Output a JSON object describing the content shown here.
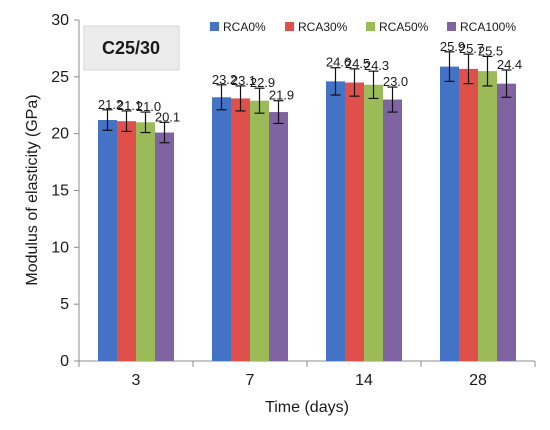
{
  "chart_data": {
    "type": "bar",
    "annotation": "C25/30",
    "xlabel": "Time (days)",
    "ylabel": "Modulus of elasticity (GPa)",
    "categories": [
      "3",
      "7",
      "14",
      "28"
    ],
    "ylim": [
      0,
      30
    ],
    "yticks": [
      0,
      5,
      10,
      15,
      20,
      25,
      30
    ],
    "legend_position": "top-right",
    "grid": false,
    "series": [
      {
        "name": "RCA0%",
        "color": "#4472C4",
        "values": [
          21.2,
          23.2,
          24.6,
          25.9
        ],
        "labels": [
          "21.2",
          "23.2",
          "24.6",
          "25.9"
        ],
        "errors": [
          0.9,
          1.1,
          1.2,
          1.3
        ]
      },
      {
        "name": "RCA30%",
        "color": "#E0504A",
        "values": [
          21.1,
          23.1,
          24.5,
          25.7
        ],
        "labels": [
          "21.1",
          "23.1",
          "24.5",
          "25.7"
        ],
        "errors": [
          0.9,
          1.1,
          1.2,
          1.3
        ]
      },
      {
        "name": "RCA50%",
        "color": "#9BBB59",
        "values": [
          21.0,
          22.9,
          24.3,
          25.5
        ],
        "labels": [
          "21.0",
          "22.9",
          "24.3",
          "25.5"
        ],
        "errors": [
          0.9,
          1.1,
          1.2,
          1.3
        ]
      },
      {
        "name": "RCA100%",
        "color": "#8064A2",
        "values": [
          20.1,
          21.9,
          23.0,
          24.4
        ],
        "labels": [
          "20.1",
          "21.9",
          "23.0",
          "24.4"
        ],
        "errors": [
          0.9,
          1.0,
          1.1,
          1.2
        ]
      }
    ]
  }
}
